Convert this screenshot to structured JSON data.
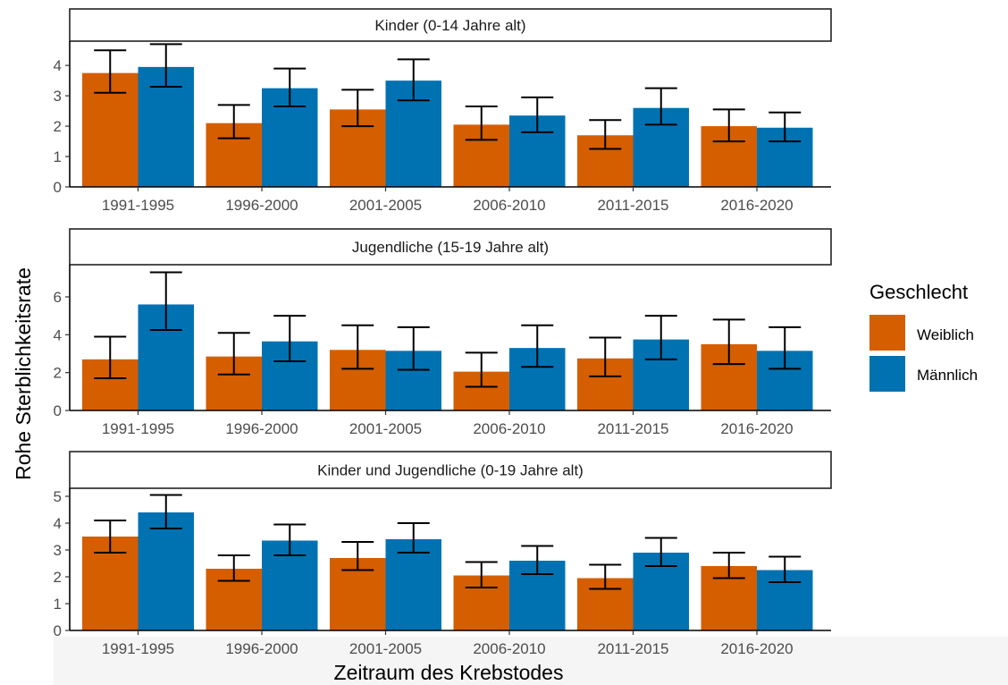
{
  "chart_data": {
    "type": "bar",
    "categories": [
      "1991-1995",
      "1996-2000",
      "2001-2005",
      "2006-2010",
      "2011-2015",
      "2016-2020"
    ],
    "xlabel": "Zeitraum des Krebstodes",
    "ylabel": "Rohe Sterblichkeitsrate",
    "legend": {
      "title": "Geschlecht",
      "position": "right",
      "entries": [
        "Weiblich",
        "Männlich"
      ]
    },
    "colors": {
      "Weiblich": "#d55e00",
      "Männlich": "#0072b2"
    },
    "grid": false,
    "facets": [
      {
        "title": "Kinder (0-14 Jahre alt)",
        "ylim": [
          0,
          4.8
        ],
        "yticks": [
          0,
          1,
          2,
          3,
          4
        ],
        "series": [
          {
            "name": "Weiblich",
            "values": [
              3.75,
              2.1,
              2.55,
              2.05,
              1.7,
              2.0
            ],
            "lower": [
              3.1,
              1.6,
              2.0,
              1.55,
              1.25,
              1.5
            ],
            "upper": [
              4.5,
              2.7,
              3.2,
              2.65,
              2.2,
              2.55
            ]
          },
          {
            "name": "Männlich",
            "values": [
              3.95,
              3.25,
              3.5,
              2.35,
              2.6,
              1.95
            ],
            "lower": [
              3.3,
              2.65,
              2.85,
              1.8,
              2.05,
              1.5
            ],
            "upper": [
              4.7,
              3.9,
              4.2,
              2.95,
              3.25,
              2.45
            ]
          }
        ]
      },
      {
        "title": "Jugendliche (15-19 Jahre alt)",
        "ylim": [
          0,
          7.7
        ],
        "yticks": [
          0,
          2,
          4,
          6
        ],
        "series": [
          {
            "name": "Weiblich",
            "values": [
              2.7,
              2.85,
              3.2,
              2.05,
              2.75,
              3.5
            ],
            "lower": [
              1.7,
              1.9,
              2.2,
              1.25,
              1.8,
              2.45
            ],
            "upper": [
              3.9,
              4.1,
              4.5,
              3.05,
              3.85,
              4.8
            ]
          },
          {
            "name": "Männlich",
            "values": [
              5.6,
              3.65,
              3.15,
              3.3,
              3.75,
              3.15
            ],
            "lower": [
              4.25,
              2.6,
              2.15,
              2.3,
              2.7,
              2.2
            ],
            "upper": [
              7.3,
              5.0,
              4.4,
              4.5,
              5.0,
              4.4
            ]
          }
        ]
      },
      {
        "title": "Kinder und Jugendliche (0-19 Jahre alt)",
        "ylim": [
          0,
          5.3
        ],
        "yticks": [
          0,
          1,
          2,
          3,
          4,
          5
        ],
        "series": [
          {
            "name": "Weiblich",
            "values": [
              3.5,
              2.3,
              2.7,
              2.05,
              1.95,
              2.4
            ],
            "lower": [
              2.9,
              1.85,
              2.25,
              1.6,
              1.55,
              1.95
            ],
            "upper": [
              4.1,
              2.8,
              3.3,
              2.55,
              2.45,
              2.9
            ]
          },
          {
            "name": "Männlich",
            "values": [
              4.4,
              3.35,
              3.4,
              2.6,
              2.9,
              2.25
            ],
            "lower": [
              3.8,
              2.8,
              2.9,
              2.1,
              2.4,
              1.8
            ],
            "upper": [
              5.05,
              3.95,
              4.0,
              3.15,
              3.45,
              2.75
            ]
          }
        ]
      }
    ]
  }
}
